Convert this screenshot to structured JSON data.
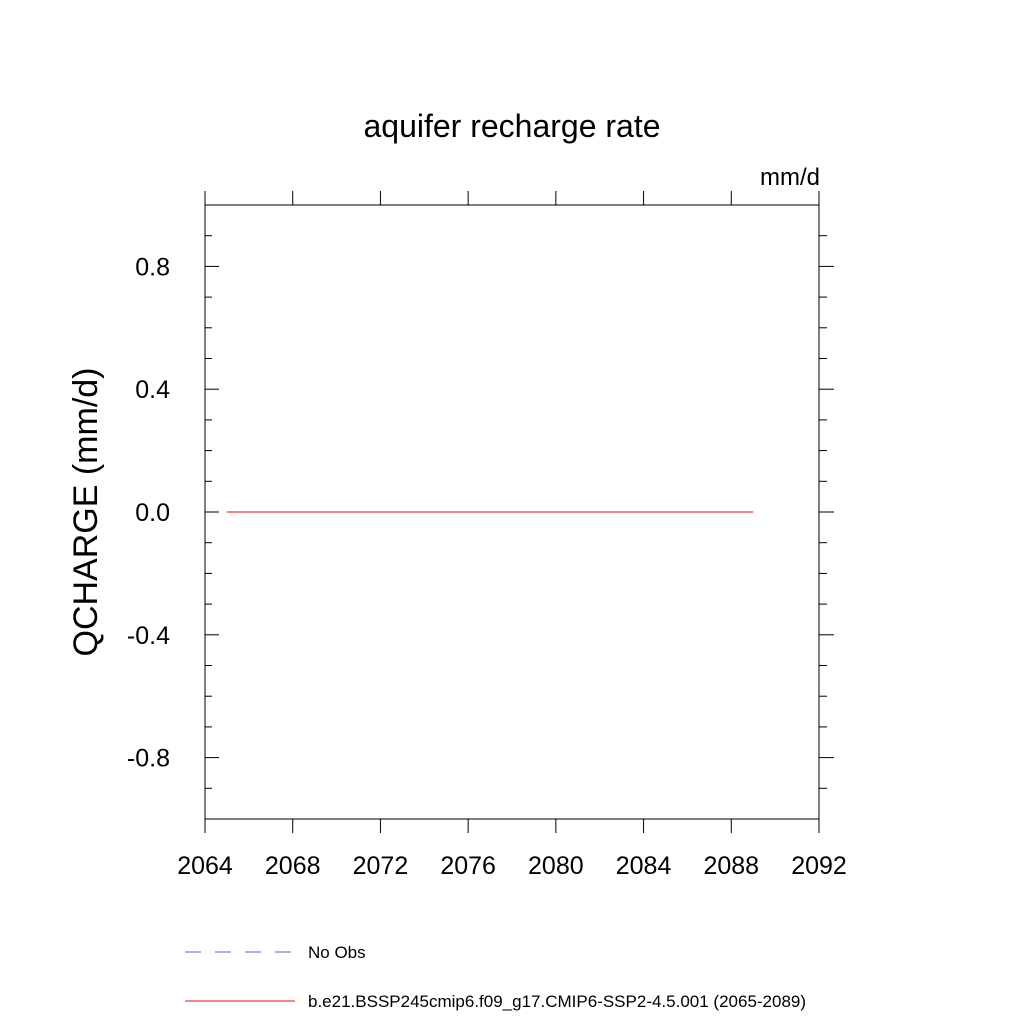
{
  "chart_data": {
    "type": "line",
    "title": "aquifer recharge rate",
    "units_label": "mm/d",
    "xlabel": "",
    "ylabel": "QCHARGE  (mm/d)",
    "xlim": [
      2064,
      2092
    ],
    "ylim": [
      -1.0,
      1.0
    ],
    "x_ticks": [
      2064,
      2068,
      2072,
      2076,
      2080,
      2084,
      2088,
      2092
    ],
    "x_tick_labels": [
      "2064",
      "2068",
      "2072",
      "2076",
      "2080",
      "2084",
      "2088",
      "2092"
    ],
    "y_ticks": [
      0.8,
      0.4,
      0.0,
      -0.4,
      -0.8
    ],
    "y_tick_labels": [
      "0.8",
      "0.4",
      "0.0",
      "-0.4",
      "-0.8"
    ],
    "grid": false,
    "legend_position": "bottom",
    "series": [
      {
        "name": "No Obs",
        "color": "#6a5acd",
        "style": "dashed",
        "x": [],
        "y": []
      },
      {
        "name": "b.e21.BSSP245cmip6.f09_g17.CMIP6-SSP2-4.5.001 (2065-2089)",
        "color": "#ff0000",
        "style": "solid",
        "x": [
          2065,
          2066,
          2067,
          2068,
          2069,
          2070,
          2071,
          2072,
          2073,
          2074,
          2075,
          2076,
          2077,
          2078,
          2079,
          2080,
          2081,
          2082,
          2083,
          2084,
          2085,
          2086,
          2087,
          2088,
          2089
        ],
        "y": [
          0,
          0,
          0,
          0,
          0,
          0,
          0,
          0,
          0,
          0,
          0,
          0,
          0,
          0,
          0,
          0,
          0,
          0,
          0,
          0,
          0,
          0,
          0,
          0,
          0
        ]
      }
    ]
  }
}
